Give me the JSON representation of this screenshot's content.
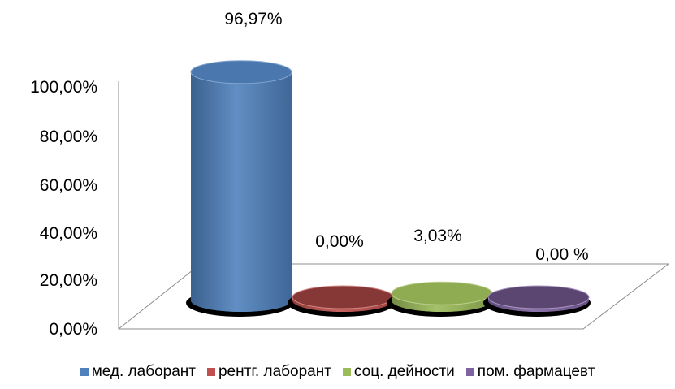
{
  "chart_data": {
    "type": "bar",
    "style": "3d-cylinder",
    "categories": [
      "мед. лаборант",
      "рентг. лаборант",
      "соц. дейности",
      "пом. фармацевт"
    ],
    "values": [
      96.97,
      0.0,
      3.03,
      0.0
    ],
    "data_labels": [
      "96,97%",
      "0,00%",
      "3,03%",
      "0,00 %"
    ],
    "colors": [
      "#4F81BD",
      "#C0504D",
      "#9BBB59",
      "#8064A2"
    ],
    "yticks": [
      "0,00%",
      "20,00%",
      "40,00%",
      "60,00%",
      "80,00%",
      "100,00%"
    ],
    "ylim": [
      0,
      100
    ],
    "grid": false,
    "legend": "bottom"
  }
}
